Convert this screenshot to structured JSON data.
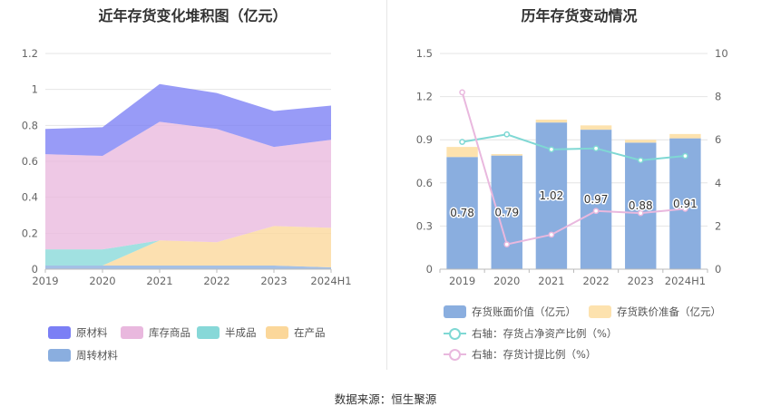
{
  "left_chart": {
    "title": "近年存货变化堆积图（亿元）",
    "legend": [
      {
        "label": "原材料",
        "color": "#7b7ff5"
      },
      {
        "label": "库存商品",
        "color": "#e9b8de"
      },
      {
        "label": "半成品",
        "color": "#87d8d8"
      },
      {
        "label": "在产品",
        "color": "#fbd79a"
      },
      {
        "label": "周转材料",
        "color": "#8aaedf"
      }
    ]
  },
  "right_chart": {
    "title": "历年存货变动情况",
    "legend": [
      {
        "label": "存货账面价值（亿元）",
        "color": "#8aaedf"
      },
      {
        "label": "存货跌价准备（亿元）",
        "color": "#fde2ae"
      },
      {
        "label": "右轴：存货占净资产比例（%）",
        "color": "#7fd8d4"
      },
      {
        "label": "右轴：存货计提比例（%）",
        "color": "#e9b8de"
      }
    ]
  },
  "chart_data": [
    {
      "type": "area",
      "stacked": true,
      "title": "近年存货变化堆积图（亿元）",
      "x": [
        "2019",
        "2020",
        "2021",
        "2022",
        "2023",
        "2024H1"
      ],
      "ylim": [
        0,
        1.2
      ],
      "yticks": [
        0,
        0.2,
        0.4,
        0.6,
        0.8,
        1,
        1.2
      ],
      "grid": true,
      "legend_position": "bottom",
      "series": [
        {
          "name": "周转材料",
          "values": [
            0.02,
            0.02,
            0.02,
            0.02,
            0.02,
            0.01
          ]
        },
        {
          "name": "在产品",
          "values": [
            0.0,
            0.0,
            0.14,
            0.13,
            0.22,
            0.22
          ]
        },
        {
          "name": "半成品",
          "values": [
            0.09,
            0.09,
            0.0,
            0.0,
            0.0,
            0.0
          ]
        },
        {
          "name": "库存商品",
          "values": [
            0.53,
            0.52,
            0.66,
            0.63,
            0.44,
            0.49
          ]
        },
        {
          "name": "原材料",
          "values": [
            0.14,
            0.16,
            0.21,
            0.2,
            0.2,
            0.19
          ]
        }
      ]
    },
    {
      "type": "bar",
      "stacked": true,
      "title": "历年存货变动情况",
      "categories": [
        "2019",
        "2020",
        "2021",
        "2022",
        "2023",
        "2024H1"
      ],
      "ylim": [
        0,
        1.5
      ],
      "yticks": [
        0,
        0.3,
        0.6,
        0.9,
        1.2,
        1.5
      ],
      "y2lim": [
        0,
        10
      ],
      "y2ticks": [
        0,
        2,
        4,
        6,
        8,
        10
      ],
      "grid": true,
      "legend_position": "bottom",
      "series": [
        {
          "name": "存货账面价值（亿元）",
          "type": "bar",
          "axis": "left",
          "values": [
            0.78,
            0.79,
            1.02,
            0.97,
            0.88,
            0.91
          ],
          "labels": [
            "0.78",
            "0.79",
            "1.02",
            "0.97",
            "0.88",
            "0.91"
          ]
        },
        {
          "name": "存货跌价准备（亿元）",
          "type": "bar",
          "axis": "left",
          "values": [
            0.07,
            0.01,
            0.02,
            0.03,
            0.02,
            0.03
          ]
        },
        {
          "name": "右轴：存货占净资产比例（%）",
          "type": "line",
          "axis": "right",
          "values": [
            5.9,
            6.25,
            5.55,
            5.6,
            5.05,
            5.25
          ]
        },
        {
          "name": "右轴：存货计提比例（%）",
          "type": "line",
          "axis": "right",
          "values": [
            8.2,
            1.15,
            1.6,
            2.7,
            2.6,
            2.8
          ]
        }
      ]
    }
  ],
  "footer": {
    "source": "数据来源：恒生聚源"
  }
}
